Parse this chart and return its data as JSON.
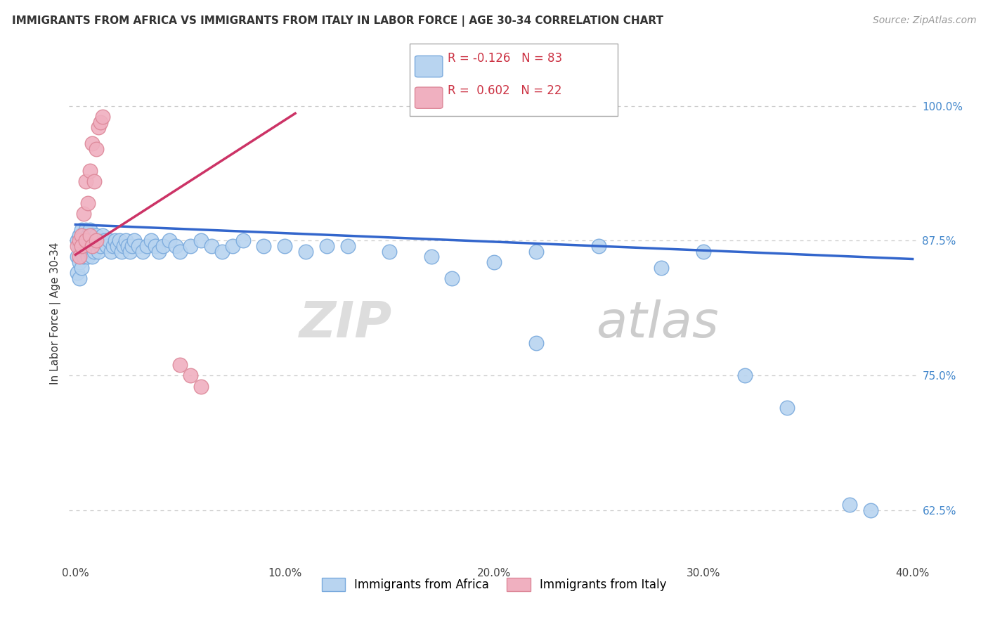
{
  "title": "IMMIGRANTS FROM AFRICA VS IMMIGRANTS FROM ITALY IN LABOR FORCE | AGE 30-34 CORRELATION CHART",
  "source": "Source: ZipAtlas.com",
  "ylabel": "In Labor Force | Age 30-34",
  "xlim": [
    -0.003,
    0.403
  ],
  "ylim": [
    0.575,
    1.04
  ],
  "xtick_labels": [
    "0.0%",
    "10.0%",
    "20.0%",
    "30.0%",
    "40.0%"
  ],
  "xtick_values": [
    0.0,
    0.1,
    0.2,
    0.3,
    0.4
  ],
  "ytick_right_labels": [
    "100.0%",
    "87.5%",
    "75.0%",
    "62.5%"
  ],
  "ytick_right_values": [
    1.0,
    0.875,
    0.75,
    0.625
  ],
  "africa_color": "#b8d4f0",
  "africa_edge_color": "#7aaadd",
  "italy_color": "#f0b0c0",
  "italy_edge_color": "#dd8899",
  "trend_africa_color": "#3366cc",
  "trend_italy_color": "#cc3366",
  "legend_R_africa": "-0.126",
  "legend_N_africa": "83",
  "legend_R_italy": "0.602",
  "legend_N_italy": "22",
  "watermark_zip": "ZIP",
  "watermark_atlas": "atlas",
  "africa_trend_x": [
    0.0,
    0.4
  ],
  "africa_trend_y": [
    0.89,
    0.858
  ],
  "italy_trend_x": [
    0.0,
    0.105
  ],
  "italy_trend_y": [
    0.862,
    0.993
  ],
  "africa_x": [
    0.001,
    0.001,
    0.001,
    0.002,
    0.002,
    0.002,
    0.002,
    0.003,
    0.003,
    0.003,
    0.003,
    0.004,
    0.004,
    0.004,
    0.005,
    0.005,
    0.005,
    0.006,
    0.006,
    0.006,
    0.007,
    0.007,
    0.007,
    0.008,
    0.008,
    0.008,
    0.009,
    0.009,
    0.01,
    0.01,
    0.011,
    0.011,
    0.012,
    0.013,
    0.014,
    0.015,
    0.016,
    0.017,
    0.018,
    0.019,
    0.02,
    0.021,
    0.022,
    0.023,
    0.024,
    0.025,
    0.026,
    0.027,
    0.028,
    0.03,
    0.032,
    0.034,
    0.036,
    0.038,
    0.04,
    0.042,
    0.045,
    0.048,
    0.05,
    0.055,
    0.06,
    0.065,
    0.07,
    0.075,
    0.08,
    0.09,
    0.1,
    0.11,
    0.12,
    0.13,
    0.15,
    0.17,
    0.2,
    0.22,
    0.25,
    0.28,
    0.3,
    0.32,
    0.34,
    0.37,
    0.22,
    0.18,
    0.38
  ],
  "africa_y": [
    0.875,
    0.86,
    0.845,
    0.88,
    0.87,
    0.855,
    0.84,
    0.885,
    0.875,
    0.865,
    0.85,
    0.88,
    0.87,
    0.86,
    0.885,
    0.875,
    0.865,
    0.88,
    0.87,
    0.86,
    0.885,
    0.875,
    0.865,
    0.88,
    0.87,
    0.86,
    0.875,
    0.865,
    0.88,
    0.87,
    0.875,
    0.865,
    0.87,
    0.88,
    0.875,
    0.87,
    0.875,
    0.865,
    0.87,
    0.875,
    0.87,
    0.875,
    0.865,
    0.87,
    0.875,
    0.87,
    0.865,
    0.87,
    0.875,
    0.87,
    0.865,
    0.87,
    0.875,
    0.87,
    0.865,
    0.87,
    0.875,
    0.87,
    0.865,
    0.87,
    0.875,
    0.87,
    0.865,
    0.87,
    0.875,
    0.87,
    0.87,
    0.865,
    0.87,
    0.87,
    0.865,
    0.86,
    0.855,
    0.865,
    0.87,
    0.85,
    0.865,
    0.75,
    0.72,
    0.63,
    0.78,
    0.84,
    0.625
  ],
  "italy_x": [
    0.001,
    0.002,
    0.002,
    0.003,
    0.003,
    0.004,
    0.005,
    0.005,
    0.006,
    0.007,
    0.007,
    0.008,
    0.008,
    0.009,
    0.01,
    0.01,
    0.011,
    0.012,
    0.013,
    0.05,
    0.055,
    0.06
  ],
  "italy_y": [
    0.87,
    0.875,
    0.86,
    0.88,
    0.87,
    0.9,
    0.93,
    0.875,
    0.91,
    0.94,
    0.88,
    0.965,
    0.87,
    0.93,
    0.96,
    0.875,
    0.98,
    0.985,
    0.99,
    0.76,
    0.75,
    0.74
  ]
}
